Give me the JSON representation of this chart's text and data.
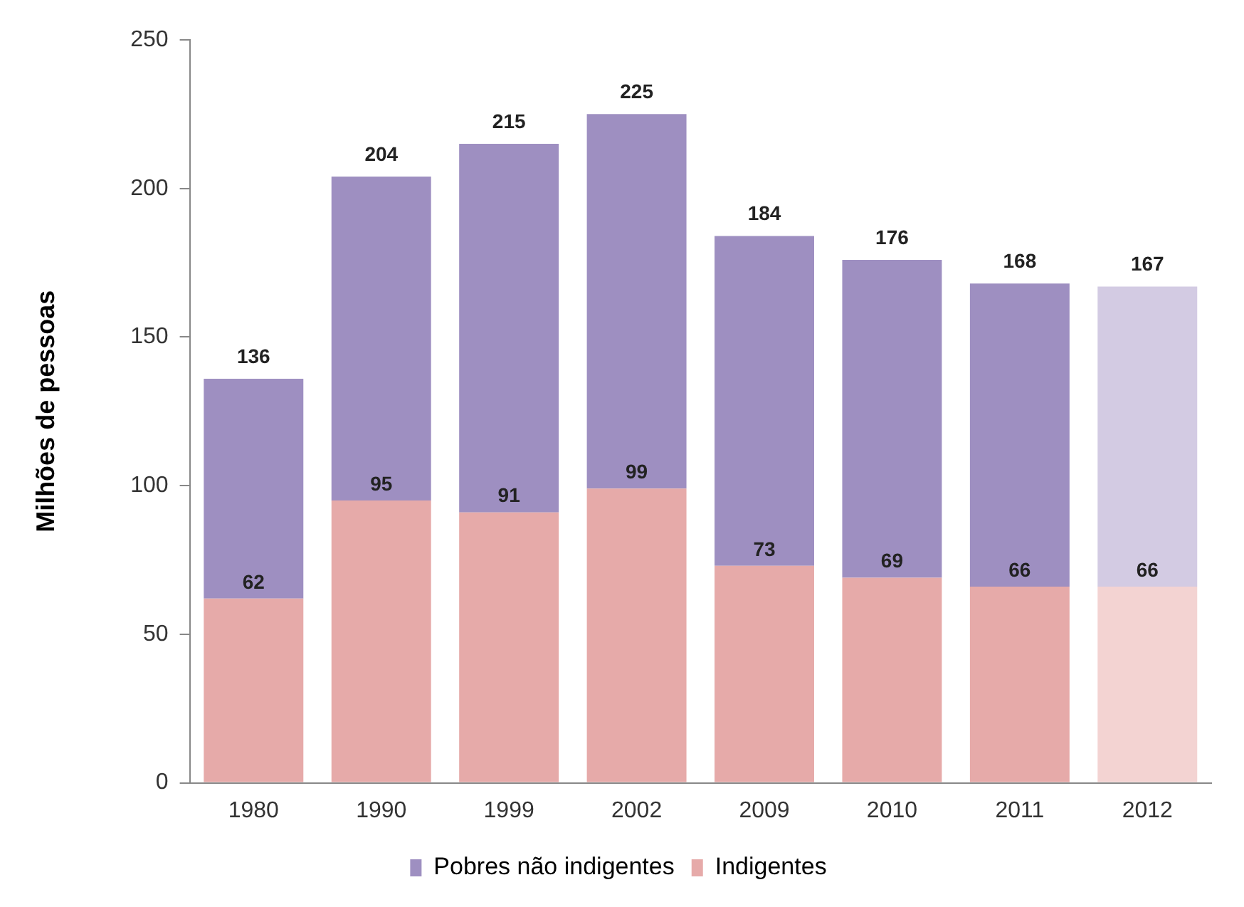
{
  "chart_data": {
    "type": "bar",
    "ylabel": "Milhões de pessoas",
    "categories": [
      "1980",
      "1990",
      "1999",
      "2002",
      "2009",
      "2010",
      "2011",
      "2012"
    ],
    "stacked": true,
    "ylim": [
      0,
      250
    ],
    "yticks": [
      0,
      50,
      100,
      150,
      200,
      250
    ],
    "grid": false,
    "legend": "bottom",
    "series": [
      {
        "name": "Indigentes",
        "colors": [
          "#e6aaa9",
          "#e6aaa9",
          "#e6aaa9",
          "#e6aaa9",
          "#e6aaa9",
          "#e6aaa9",
          "#e6aaa9",
          "#f3d3d2"
        ],
        "values": [
          62,
          95,
          91,
          99,
          73,
          69,
          66,
          66
        ],
        "value_labels": [
          "62",
          "95",
          "91",
          "99",
          "73",
          "69",
          "66",
          "66"
        ]
      },
      {
        "name": "Pobres não indigentes",
        "colors": [
          "#9e8fc1",
          "#9e8fc1",
          "#9e8fc1",
          "#9e8fc1",
          "#9e8fc1",
          "#9e8fc1",
          "#9e8fc1",
          "#d3cbe3"
        ],
        "values": [
          74,
          109,
          124,
          126,
          111,
          107,
          102,
          101
        ]
      }
    ],
    "totals": [
      "136",
      "204",
      "215",
      "225",
      "184",
      "176",
      "168",
      "167"
    ]
  }
}
